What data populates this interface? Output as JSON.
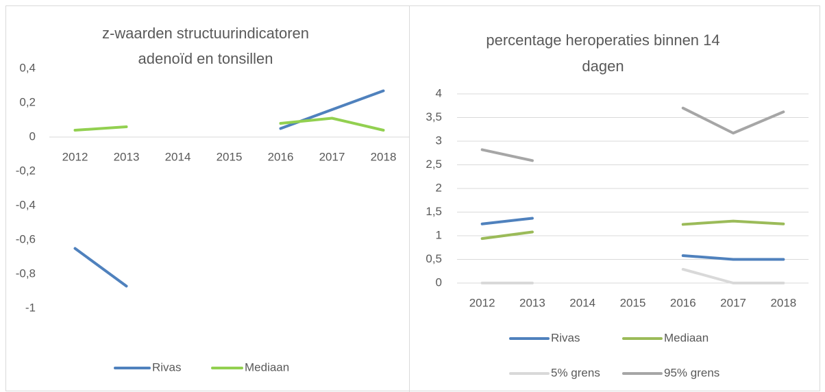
{
  "chart_data": [
    {
      "type": "line",
      "title": [
        "z-waarden structuurindicatoren",
        "adenoïd en tonsillen"
      ],
      "categories": [
        "2012",
        "2013",
        "2014",
        "2015",
        "2016",
        "2017",
        "2018"
      ],
      "series": [
        {
          "name": "Rivas",
          "color": "#4f81bd",
          "values": [
            -0.65,
            -0.87,
            null,
            null,
            0.05,
            0.16,
            0.27
          ]
        },
        {
          "name": "Mediaan",
          "color": "#92d050",
          "values": [
            0.04,
            0.06,
            null,
            null,
            0.08,
            0.11,
            0.04
          ]
        }
      ],
      "ylim": [
        -1,
        0.4
      ],
      "yticks": [
        {
          "value": 0.4,
          "label": "0,4"
        },
        {
          "value": 0.2,
          "label": "0,2"
        },
        0,
        {
          "value": -0.2,
          "label": "-0,2"
        },
        {
          "value": -0.4,
          "label": "-0,4"
        },
        {
          "value": -0.6,
          "label": "-0,6"
        },
        {
          "value": -0.8,
          "label": "-0,8"
        },
        -1
      ],
      "grid": false,
      "legend": "bottom"
    },
    {
      "type": "line",
      "title": [
        "percentage heroperaties binnen 14",
        "dagen"
      ],
      "categories": [
        "2012",
        "2013",
        "2014",
        "2015",
        "2016",
        "2017",
        "2018"
      ],
      "series": [
        {
          "name": "Rivas",
          "color": "#4f81bd",
          "values": [
            1.25,
            1.37,
            null,
            null,
            0.58,
            0.5,
            0.5
          ]
        },
        {
          "name": "Mediaan",
          "color": "#9bbb59",
          "values": [
            0.94,
            1.08,
            null,
            null,
            1.24,
            1.31,
            1.25
          ]
        },
        {
          "name": "5% grens",
          "color": "#d9d9d9",
          "values": [
            0,
            0,
            null,
            null,
            0.29,
            0,
            0
          ]
        },
        {
          "name": "95% grens",
          "color": "#a6a6a6",
          "values": [
            2.82,
            2.59,
            null,
            null,
            3.7,
            3.17,
            3.62
          ]
        }
      ],
      "ylim": [
        0,
        4
      ],
      "yticks": [
        0,
        {
          "value": 0.5,
          "label": "0,5"
        },
        1,
        {
          "value": 1.5,
          "label": "1,5"
        },
        2,
        {
          "value": 2.5,
          "label": "2,5"
        },
        3,
        {
          "value": 3.5,
          "label": "3,5"
        },
        4
      ],
      "grid": true,
      "legend": "bottom"
    }
  ]
}
